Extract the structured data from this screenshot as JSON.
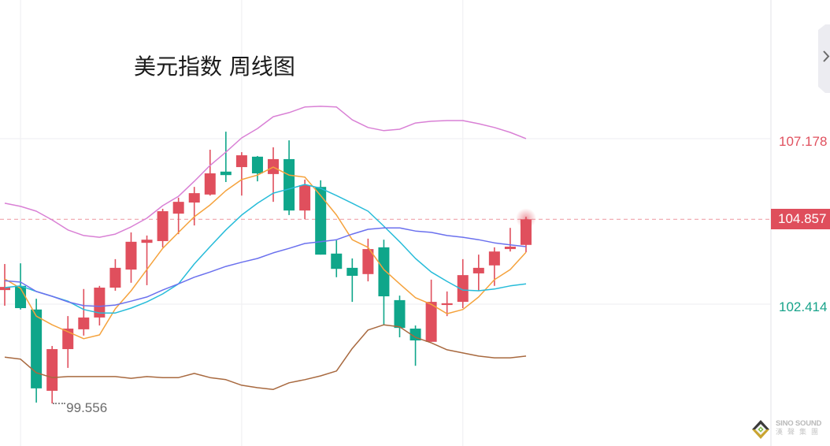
{
  "header": {
    "title": "美元指数 周线图"
  },
  "side_panel": {
    "icon": "chevron-right-icon"
  },
  "y_axis": {
    "upper_label": "107.178",
    "current_label": "104.857",
    "lower_label": "102.414"
  },
  "low_marker": {
    "label": "99.556"
  },
  "logo": {
    "name_en": "SINO SOUND",
    "name_cn": "漢聲集團",
    "icon": "diamond-logo-icon"
  },
  "colors": {
    "up": "#e04f5d",
    "down": "#0fa68a",
    "axis_upper": "#e0505e",
    "axis_lower": "#17a38a",
    "current_tag_bg": "#df4e5c",
    "current_tag_text": "#ffffff",
    "current_line": "#f0a3ab",
    "grid": "#f0f0f3",
    "axis_border": "#ebebef",
    "low_label": "#6b6b6b",
    "side_panel_bg": "#ececf1",
    "side_panel_icon": "#6a6a6a",
    "glow": "#e04f5d"
  },
  "chart_data": {
    "type": "candlestick",
    "title": "美元指数 周线图",
    "xlabel": "",
    "ylabel": "",
    "ylim": [
      98.33,
      111.17
    ],
    "y_ticks": [
      107.178,
      102.414
    ],
    "y_tick_labels": [
      "107.178",
      "102.414"
    ],
    "current_price": 104.857,
    "grid": true,
    "x_grid_at_index": [
      1,
      15,
      29
    ],
    "legend": null,
    "low_annotation": {
      "index": 3,
      "value": 99.556,
      "label": "99.556"
    },
    "candles": {
      "fields": [
        "open",
        "high",
        "low",
        "close"
      ],
      "values": [
        [
          102.82,
          103.57,
          102.37,
          102.91
        ],
        [
          102.94,
          103.59,
          102.26,
          102.3
        ],
        [
          102.26,
          102.57,
          99.58,
          99.99
        ],
        [
          99.92,
          101.21,
          99.556,
          101.12
        ],
        [
          101.12,
          102.07,
          100.58,
          101.71
        ],
        [
          101.69,
          102.85,
          101.51,
          102.03
        ],
        [
          102.03,
          102.94,
          101.8,
          102.89
        ],
        [
          102.89,
          103.71,
          102.8,
          103.46
        ],
        [
          103.41,
          104.48,
          103.03,
          104.21
        ],
        [
          104.18,
          104.39,
          102.96,
          104.27
        ],
        [
          104.23,
          105.16,
          104.05,
          105.09
        ],
        [
          105.02,
          105.48,
          104.43,
          105.36
        ],
        [
          105.34,
          105.79,
          104.68,
          105.61
        ],
        [
          105.57,
          106.86,
          105.54,
          106.18
        ],
        [
          106.23,
          107.38,
          105.93,
          106.13
        ],
        [
          106.36,
          106.79,
          105.54,
          106.7
        ],
        [
          106.66,
          106.68,
          105.95,
          106.18
        ],
        [
          106.16,
          106.93,
          105.36,
          106.59
        ],
        [
          106.59,
          107.13,
          104.98,
          105.11
        ],
        [
          105.11,
          106.0,
          104.86,
          105.84
        ],
        [
          105.79,
          105.98,
          103.84,
          103.84
        ],
        [
          103.87,
          104.25,
          103.19,
          103.43
        ],
        [
          103.46,
          103.73,
          102.48,
          103.23
        ],
        [
          103.28,
          104.3,
          103.07,
          104.0
        ],
        [
          104.05,
          104.27,
          101.82,
          102.64
        ],
        [
          102.53,
          102.66,
          101.46,
          101.73
        ],
        [
          101.71,
          101.8,
          100.64,
          101.37
        ],
        [
          101.33,
          103.12,
          101.33,
          102.48
        ],
        [
          102.39,
          102.78,
          102.07,
          102.44
        ],
        [
          102.48,
          103.71,
          102.3,
          103.25
        ],
        [
          103.3,
          103.84,
          102.8,
          103.46
        ],
        [
          103.53,
          104.05,
          102.94,
          103.93
        ],
        [
          104.0,
          104.61,
          103.93,
          104.07
        ],
        [
          104.12,
          104.93,
          103.91,
          104.857
        ]
      ]
    },
    "series": [
      {
        "id": "ma5",
        "color": "#f5a23c",
        "values": [
          103.14,
          102.87,
          102.07,
          101.82,
          101.62,
          101.42,
          101.53,
          102.28,
          102.8,
          103.41,
          104.02,
          104.48,
          104.93,
          105.27,
          105.68,
          106.0,
          106.13,
          106.36,
          106.13,
          106.07,
          105.54,
          104.98,
          104.27,
          104.05,
          103.41,
          103.0,
          102.6,
          102.41,
          102.14,
          102.26,
          102.62,
          103.12,
          103.41,
          103.91
        ]
      },
      {
        "id": "ma10",
        "color": "#27bcd9",
        "values": [
          102.89,
          102.94,
          102.78,
          102.64,
          102.5,
          102.26,
          102.16,
          102.16,
          102.3,
          102.48,
          102.71,
          103.0,
          103.57,
          104.07,
          104.55,
          104.98,
          105.32,
          105.61,
          105.73,
          105.86,
          105.75,
          105.54,
          105.32,
          105.09,
          104.66,
          104.21,
          103.73,
          103.34,
          103.07,
          102.82,
          102.8,
          102.85,
          102.94,
          103.0
        ]
      },
      {
        "id": "ma20_mid_band",
        "color": "#6b71ee",
        "values": [
          103.09,
          103.05,
          102.78,
          102.64,
          102.48,
          102.37,
          102.35,
          102.39,
          102.5,
          102.62,
          102.82,
          103.0,
          103.19,
          103.34,
          103.5,
          103.62,
          103.73,
          103.89,
          104.02,
          104.16,
          104.21,
          104.27,
          104.43,
          104.57,
          104.61,
          104.61,
          104.52,
          104.48,
          104.39,
          104.34,
          104.27,
          104.18,
          104.12,
          104.07
        ]
      },
      {
        "id": "upper_band",
        "color": "#d980d5",
        "values": [
          105.32,
          105.23,
          105.09,
          104.84,
          104.55,
          104.39,
          104.34,
          104.43,
          104.64,
          104.89,
          105.25,
          105.52,
          105.95,
          106.41,
          106.79,
          107.2,
          107.47,
          107.81,
          107.93,
          108.09,
          108.11,
          108.09,
          107.72,
          107.5,
          107.41,
          107.45,
          107.63,
          107.68,
          107.7,
          107.7,
          107.61,
          107.5,
          107.36,
          107.18
        ]
      },
      {
        "id": "lower_band",
        "color": "#a8693f",
        "values": [
          100.89,
          100.83,
          100.44,
          100.3,
          100.33,
          100.33,
          100.33,
          100.33,
          100.28,
          100.33,
          100.3,
          100.3,
          100.42,
          100.3,
          100.24,
          100.08,
          100.01,
          99.96,
          100.15,
          100.24,
          100.35,
          100.49,
          101.14,
          101.67,
          101.82,
          101.76,
          101.46,
          101.3,
          101.1,
          101.01,
          100.92,
          100.87,
          100.87,
          100.92
        ]
      }
    ]
  }
}
